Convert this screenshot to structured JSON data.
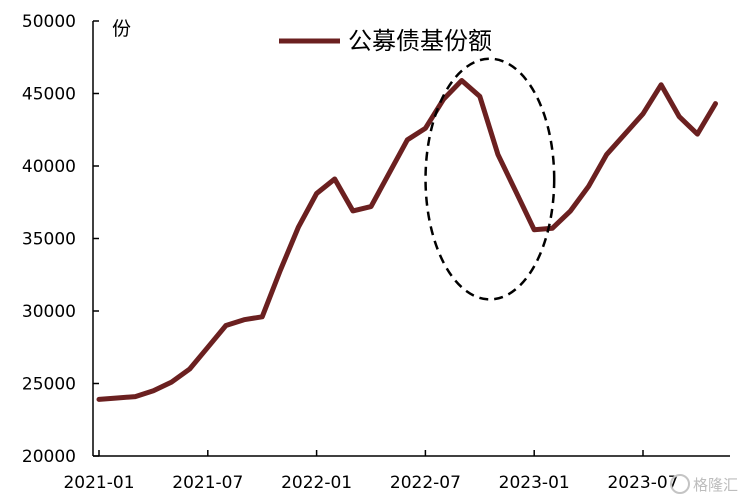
{
  "chart_data": {
    "type": "line",
    "ylabel": "份",
    "ylim": [
      20000,
      50000
    ],
    "y_ticks": [
      20000,
      25000,
      30000,
      35000,
      40000,
      45000,
      50000
    ],
    "y_tick_labels": [
      "20000",
      "25000",
      "30000",
      "35000",
      "40000",
      "45000",
      "50000"
    ],
    "x_tick_labels": [
      "2021-01",
      "2021-07",
      "2022-01",
      "2022-07",
      "2023-01",
      "2023-07"
    ],
    "legend_position": "top-center",
    "grid": false,
    "series": [
      {
        "name": "公募债基份额",
        "color": "#6b2020",
        "x": [
          "2021-01",
          "2021-02",
          "2021-03",
          "2021-04",
          "2021-05",
          "2021-06",
          "2021-07",
          "2021-08",
          "2021-09",
          "2021-10",
          "2021-11",
          "2021-12",
          "2022-01",
          "2022-02",
          "2022-03",
          "2022-04",
          "2022-05",
          "2022-06",
          "2022-07",
          "2022-08",
          "2022-09",
          "2022-10",
          "2022-11",
          "2022-12",
          "2023-01",
          "2023-02",
          "2023-03",
          "2023-04",
          "2023-05",
          "2023-06",
          "2023-07",
          "2023-08",
          "2023-09",
          "2023-10",
          "2023-11"
        ],
        "values": [
          23900,
          24000,
          24100,
          24500,
          25100,
          26000,
          27500,
          29000,
          29400,
          29600,
          32800,
          35800,
          38100,
          39100,
          36900,
          37200,
          39500,
          41800,
          42600,
          44600,
          45900,
          44800,
          40800,
          38200,
          35600,
          35700,
          36900,
          38600,
          40800,
          42200,
          43600,
          45600,
          43400,
          42200,
          44300
        ]
      }
    ],
    "annotations": [
      {
        "type": "dashed-ellipse",
        "x_range": [
          "2022-08",
          "2023-01"
        ],
        "y_range": [
          30800,
          47400
        ]
      }
    ]
  },
  "watermark": "格隆汇"
}
